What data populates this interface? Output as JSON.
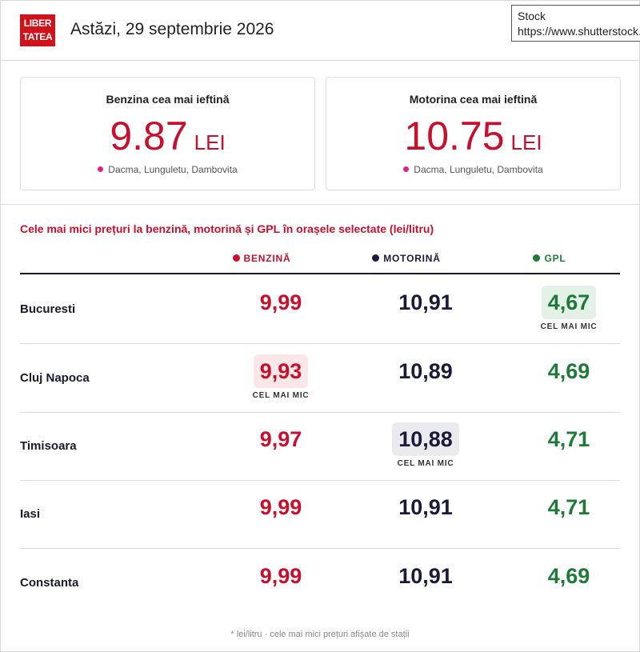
{
  "header": {
    "logo_line1": "LIBER",
    "logo_line2": "TATEA",
    "date": "Astăzi, 29 septembrie 2026",
    "stock_line1": "Stock",
    "stock_line2": "https://www.shutterstock.com"
  },
  "cards": [
    {
      "title": "Benzina cea mai ieftină",
      "price": "9.87",
      "unit": "LEI",
      "location": "Dacma, Lunguletu, Dambovita"
    },
    {
      "title": "Motorina cea mai ieftină",
      "price": "10.75",
      "unit": "LEI",
      "location": "Dacma, Lunguletu, Dambovita"
    }
  ],
  "section_title": "Cele mai mici prețuri la benzină, motorină și GPL în orașele selectate (lei/litru)",
  "columns": {
    "benzina": "BENZINĂ",
    "motorina": "MOTORINĂ",
    "gpl": "GPL"
  },
  "lowest_label": "CEL MAI MIC",
  "rows": [
    {
      "city": "Bucuresti",
      "benzina": "9,99",
      "motorina": "10,91",
      "gpl": "4,67"
    },
    {
      "city": "Cluj Napoca",
      "benzina": "9,93",
      "motorina": "10,89",
      "gpl": "4,69"
    },
    {
      "city": "Timisoara",
      "benzina": "9,97",
      "motorina": "10,88",
      "gpl": "4,71"
    },
    {
      "city": "Iasi",
      "benzina": "9,99",
      "motorina": "10,91",
      "gpl": "4,71"
    },
    {
      "city": "Constanta",
      "benzina": "9,99",
      "motorina": "10,91",
      "gpl": "4,69"
    }
  ],
  "footnote": "* lei/litru · cele mai mici prețuri afișate de stații",
  "colors": {
    "benzina": "#c8102e",
    "motorina": "#1a1a3a",
    "gpl": "#1f7a3a",
    "brand": "#d0121b"
  }
}
